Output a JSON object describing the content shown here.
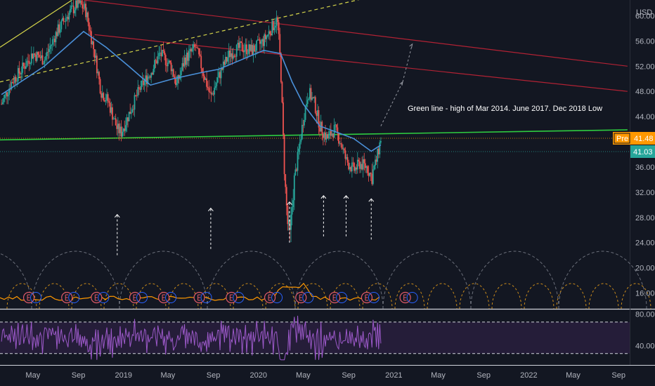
{
  "currency_label": "USD",
  "annotation": "Green line - high of Mar 2014. June 2017. Dec 2018 Low",
  "badges": {
    "pre_label": "Pre",
    "pre_price": "41.48",
    "last_price": "41.03",
    "pre_color": "#ff9800",
    "last_color": "#26a69a"
  },
  "colors": {
    "background": "#131722",
    "ma_line": "#4a90d9",
    "support_line": "#2ecc40",
    "trend_red": "#b22234",
    "trend_yellow": "#d4d44a",
    "rsi": "#9c59c9",
    "cycle_arc": "#6b6f7a",
    "earnings_marker": "#e05a6a"
  },
  "chart_data": {
    "type": "candlestick",
    "price_axis": {
      "ticks": [
        16,
        20,
        24,
        28,
        32,
        36,
        40,
        44,
        48,
        52,
        56,
        60
      ],
      "tick_labels": [
        "16.00",
        "20.00",
        "24.00",
        "28.00",
        "32.00",
        "36.00",
        "40.00",
        "44.00",
        "48.00",
        "52.00",
        "56.00",
        "60.00"
      ],
      "range": [
        13.5,
        62.5
      ]
    },
    "rsi_axis": {
      "tick_labels": [
        "80.00",
        "40.00"
      ],
      "ticks": [
        80,
        40
      ],
      "range": [
        20,
        85
      ]
    },
    "time_axis": {
      "labels": [
        "May",
        "Sep",
        "2019",
        "May",
        "Sep",
        "2020",
        "May",
        "Sep",
        "2021",
        "May",
        "Sep",
        "2022",
        "May",
        "Sep"
      ],
      "dates": [
        "2018-05-01",
        "2018-09-01",
        "2019-01-01",
        "2019-05-01",
        "2019-09-01",
        "2020-01-01",
        "2020-05-01",
        "2020-09-01",
        "2021-01-01",
        "2021-05-01",
        "2021-09-01",
        "2022-01-01",
        "2022-05-01",
        "2022-09-01"
      ],
      "range": [
        "2018-02-01",
        "2022-10-01"
      ]
    },
    "price_path": [
      [
        "2018-02-05",
        46.0
      ],
      [
        "2018-03-05",
        49.5
      ],
      [
        "2018-04-01",
        51.5
      ],
      [
        "2018-05-01",
        54.0
      ],
      [
        "2018-06-01",
        53.0
      ],
      [
        "2018-07-01",
        57.0
      ],
      [
        "2018-08-01",
        60.0
      ],
      [
        "2018-09-01",
        62.0
      ],
      [
        "2018-09-20",
        61.0
      ],
      [
        "2018-10-15",
        54.0
      ],
      [
        "2018-11-01",
        48.0
      ],
      [
        "2018-11-20",
        46.5
      ],
      [
        "2018-12-15",
        42.0
      ],
      [
        "2018-12-26",
        41.5
      ],
      [
        "2019-01-20",
        45.0
      ],
      [
        "2019-02-15",
        48.5
      ],
      [
        "2019-03-15",
        51.0
      ],
      [
        "2019-04-10",
        54.0
      ],
      [
        "2019-05-10",
        52.0
      ],
      [
        "2019-05-25",
        49.0
      ],
      [
        "2019-06-15",
        53.0
      ],
      [
        "2019-07-15",
        55.0
      ],
      [
        "2019-08-10",
        50.0
      ],
      [
        "2019-08-25",
        47.0
      ],
      [
        "2019-09-20",
        51.0
      ],
      [
        "2019-10-15",
        54.0
      ],
      [
        "2019-11-15",
        55.0
      ],
      [
        "2019-12-15",
        54.5
      ],
      [
        "2020-01-15",
        56.0
      ],
      [
        "2020-02-10",
        58.5
      ],
      [
        "2020-02-21",
        59.5
      ],
      [
        "2020-03-01",
        52.0
      ],
      [
        "2020-03-12",
        34.0
      ],
      [
        "2020-03-20",
        27.0
      ],
      [
        "2020-03-26",
        25.0
      ],
      [
        "2020-04-05",
        33.0
      ],
      [
        "2020-04-20",
        39.0
      ],
      [
        "2020-05-01",
        43.5
      ],
      [
        "2020-05-15",
        48.0
      ],
      [
        "2020-06-01",
        46.0
      ],
      [
        "2020-06-15",
        42.5
      ],
      [
        "2020-07-05",
        40.5
      ],
      [
        "2020-07-25",
        42.0
      ],
      [
        "2020-08-10",
        40.0
      ],
      [
        "2020-08-25",
        37.0
      ],
      [
        "2020-09-15",
        35.5
      ],
      [
        "2020-10-01",
        36.5
      ],
      [
        "2020-10-20",
        36.0
      ],
      [
        "2020-11-01",
        34.5
      ],
      [
        "2020-11-15",
        37.0
      ],
      [
        "2020-11-27",
        40.5
      ]
    ],
    "moving_average": [
      [
        "2018-02-05",
        47.5
      ],
      [
        "2018-06-01",
        52.0
      ],
      [
        "2018-09-15",
        57.5
      ],
      [
        "2018-11-15",
        55.0
      ],
      [
        "2019-01-15",
        52.0
      ],
      [
        "2019-03-15",
        49.0
      ],
      [
        "2019-05-15",
        50.0
      ],
      [
        "2019-08-01",
        51.0
      ],
      [
        "2019-09-15",
        51.5
      ],
      [
        "2019-11-15",
        53.0
      ],
      [
        "2020-01-15",
        54.5
      ],
      [
        "2020-03-01",
        54.0
      ],
      [
        "2020-04-01",
        49.5
      ],
      [
        "2020-05-01",
        46.0
      ],
      [
        "2020-06-15",
        42.5
      ],
      [
        "2020-08-01",
        41.5
      ],
      [
        "2020-09-15",
        40.5
      ],
      [
        "2020-11-01",
        38.5
      ],
      [
        "2020-11-27",
        39.5
      ]
    ],
    "trend_lines": [
      {
        "kind": "support",
        "color": "#2ecc40",
        "from": [
          "2018-02-01",
          40.3
        ],
        "to": [
          "2022-09-25",
          41.9
        ]
      },
      {
        "kind": "resistance",
        "color": "#b22234",
        "from": [
          "2018-09-15",
          62.5
        ],
        "to": [
          "2022-09-25",
          52.0
        ]
      },
      {
        "kind": "resistance",
        "color": "#b22234",
        "from": [
          "2018-10-15",
          57.0
        ],
        "to": [
          "2022-09-25",
          48.0
        ]
      },
      {
        "kind": "rising",
        "color": "#d4d44a",
        "dashed": true,
        "from": [
          "2018-02-01",
          49.5
        ],
        "to": [
          "2020-11-01",
          63.0
        ]
      },
      {
        "kind": "rising",
        "color": "#d4d44a",
        "dashed": false,
        "from": [
          "2018-02-01",
          55.0
        ],
        "to": [
          "2018-08-15",
          62.5
        ]
      }
    ],
    "dashed_projection": [
      [
        "2020-11-27",
        42.5
      ],
      [
        "2021-01-25",
        49.5
      ],
      [
        "2021-02-20",
        55.5
      ]
    ],
    "cycle_up_arrows": [
      [
        "2018-12-15",
        22.0
      ],
      [
        "2019-08-25",
        23.0
      ],
      [
        "2020-03-25",
        24.0
      ],
      [
        "2020-06-25",
        25.0
      ],
      [
        "2020-08-25",
        25.0
      ],
      [
        "2020-11-01",
        24.5
      ]
    ],
    "earnings_markers": [
      "2018-04-20",
      "2018-08-01",
      "2018-10-20",
      "2019-02-01",
      "2019-04-20",
      "2019-07-25",
      "2019-10-20",
      "2020-02-01",
      "2020-04-25",
      "2020-07-25",
      "2020-10-20",
      "2021-02-01"
    ]
  }
}
